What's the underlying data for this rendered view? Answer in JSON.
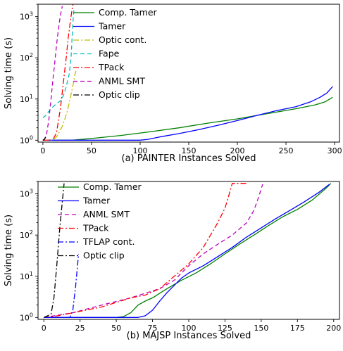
{
  "chart_data": [
    {
      "type": "line",
      "caption": "(a) PAINTER Instances Solved",
      "xlabel": "",
      "ylabel": "Solving time (s)",
      "xscale": "linear",
      "yscale": "log",
      "xlim": [
        -5,
        305
      ],
      "ylim": [
        0.9,
        2000
      ],
      "xticks": [
        0,
        50,
        100,
        150,
        200,
        250,
        300
      ],
      "yticks": [
        {
          "value": 1,
          "label": "10",
          "exp": "0"
        },
        {
          "value": 10,
          "label": "10",
          "exp": "1"
        },
        {
          "value": 100,
          "label": "10",
          "exp": "2"
        },
        {
          "value": 1000,
          "label": "10",
          "exp": "3"
        }
      ],
      "legend_position": "upper-left",
      "series": [
        {
          "name": "Comp. Tamer",
          "color": "#008000",
          "dash": "solid",
          "points": [
            [
              0,
              1
            ],
            [
              30,
              1
            ],
            [
              50,
              1.1
            ],
            [
              80,
              1.3
            ],
            [
              110,
              1.6
            ],
            [
              140,
              2
            ],
            [
              170,
              2.6
            ],
            [
              200,
              3.3
            ],
            [
              220,
              4
            ],
            [
              240,
              4.8
            ],
            [
              260,
              5.8
            ],
            [
              280,
              7.2
            ],
            [
              290,
              8.5
            ],
            [
              298,
              11
            ]
          ]
        },
        {
          "name": "Tamer",
          "color": "#0000ff",
          "dash": "solid",
          "points": [
            [
              0,
              1
            ],
            [
              100,
              1
            ],
            [
              108,
              1.05
            ],
            [
              120,
              1.2
            ],
            [
              140,
              1.45
            ],
            [
              160,
              1.8
            ],
            [
              180,
              2.3
            ],
            [
              200,
              3
            ],
            [
              220,
              4
            ],
            [
              240,
              5.2
            ],
            [
              260,
              6.5
            ],
            [
              275,
              8.5
            ],
            [
              285,
              11
            ],
            [
              292,
              14
            ],
            [
              298,
              20
            ]
          ]
        },
        {
          "name": "Optic cont.",
          "color": "#bfbf00",
          "dash": "dashdot",
          "points": [
            [
              0,
              1
            ],
            [
              10,
              1
            ],
            [
              14,
              1.2
            ],
            [
              17,
              1.6
            ],
            [
              20,
              2.2
            ],
            [
              23,
              3.5
            ],
            [
              25,
              5
            ],
            [
              27,
              8
            ],
            [
              29,
              13
            ],
            [
              31,
              22
            ],
            [
              33,
              40
            ],
            [
              34,
              48
            ]
          ]
        },
        {
          "name": "Fape",
          "color": "#00bfbf",
          "dash": "dashed",
          "points": [
            [
              0,
              3.5
            ],
            [
              3,
              4
            ],
            [
              6,
              5
            ],
            [
              9,
              6
            ],
            [
              12,
              7
            ],
            [
              15,
              8
            ],
            [
              18,
              9
            ],
            [
              21,
              12
            ],
            [
              24,
              20
            ],
            [
              27,
              40
            ],
            [
              29,
              100
            ],
            [
              30,
              300
            ],
            [
              31,
              800
            ],
            [
              32,
              1600
            ]
          ]
        },
        {
          "name": "TPack",
          "color": "#ff0000",
          "dash": "dashdot",
          "points": [
            [
              0,
              1
            ],
            [
              10,
              1
            ],
            [
              14,
              1.5
            ],
            [
              16,
              3
            ],
            [
              18,
              6
            ],
            [
              20,
              15
            ],
            [
              22,
              40
            ],
            [
              24,
              100
            ],
            [
              26,
              300
            ],
            [
              28,
              700
            ],
            [
              30,
              1500
            ],
            [
              31,
              2000
            ]
          ]
        },
        {
          "name": "ANML SMT",
          "color": "#bf00bf",
          "dash": "dashed",
          "points": [
            [
              0,
              1
            ],
            [
              2,
              1.1
            ],
            [
              4,
              1.5
            ],
            [
              6,
              3
            ],
            [
              8,
              8
            ],
            [
              10,
              25
            ],
            [
              12,
              70
            ],
            [
              14,
              200
            ],
            [
              16,
              500
            ],
            [
              18,
              1100
            ],
            [
              20,
              1800
            ]
          ]
        },
        {
          "name": "Optic clip",
          "color": "#000000",
          "dash": "dashdot",
          "points": [
            [
              0,
              1
            ],
            [
              1,
              1
            ],
            [
              2,
              1.1
            ],
            [
              3,
              1.2
            ]
          ]
        }
      ]
    },
    {
      "type": "line",
      "caption": "(b) MAJSP Instances Solved",
      "xlabel": "",
      "ylabel": "Solving time (s)",
      "xscale": "linear",
      "yscale": "log",
      "xlim": [
        -4,
        204
      ],
      "ylim": [
        0.9,
        2000
      ],
      "xticks": [
        0,
        25,
        50,
        75,
        100,
        125,
        150,
        175,
        200
      ],
      "yticks": [
        {
          "value": 1,
          "label": "10",
          "exp": "0"
        },
        {
          "value": 10,
          "label": "10",
          "exp": "1"
        },
        {
          "value": 100,
          "label": "10",
          "exp": "2"
        },
        {
          "value": 1000,
          "label": "10",
          "exp": "3"
        }
      ],
      "legend_position": "upper-left",
      "series": [
        {
          "name": "Comp. Tamer",
          "color": "#008000",
          "dash": "solid",
          "points": [
            [
              0,
              1
            ],
            [
              50,
              1
            ],
            [
              55,
              1.05
            ],
            [
              60,
              1.3
            ],
            [
              65,
              2
            ],
            [
              70,
              2.5
            ],
            [
              75,
              3
            ],
            [
              85,
              5
            ],
            [
              95,
              8
            ],
            [
              105,
              12
            ],
            [
              115,
              20
            ],
            [
              125,
              35
            ],
            [
              135,
              60
            ],
            [
              145,
              100
            ],
            [
              155,
              170
            ],
            [
              165,
              280
            ],
            [
              175,
              420
            ],
            [
              185,
              700
            ],
            [
              195,
              1400
            ],
            [
              198,
              1800
            ]
          ]
        },
        {
          "name": "Tamer",
          "color": "#0000ff",
          "dash": "solid",
          "points": [
            [
              0,
              1
            ],
            [
              65,
              1
            ],
            [
              70,
              1.1
            ],
            [
              75,
              1.5
            ],
            [
              80,
              2.5
            ],
            [
              85,
              4
            ],
            [
              90,
              6
            ],
            [
              95,
              9
            ],
            [
              100,
              12
            ],
            [
              110,
              18
            ],
            [
              120,
              30
            ],
            [
              130,
              50
            ],
            [
              140,
              90
            ],
            [
              150,
              150
            ],
            [
              160,
              250
            ],
            [
              170,
              400
            ],
            [
              180,
              650
            ],
            [
              190,
              1100
            ],
            [
              197,
              1700
            ]
          ]
        },
        {
          "name": "ANML SMT",
          "color": "#bf00bf",
          "dash": "dashed",
          "points": [
            [
              0,
              1
            ],
            [
              20,
              1.3
            ],
            [
              40,
              2
            ],
            [
              60,
              3
            ],
            [
              80,
              5
            ],
            [
              90,
              8
            ],
            [
              100,
              18
            ],
            [
              110,
              35
            ],
            [
              120,
              60
            ],
            [
              130,
              100
            ],
            [
              140,
              200
            ],
            [
              145,
              400
            ],
            [
              148,
              800
            ],
            [
              151,
              1700
            ]
          ]
        },
        {
          "name": "TPack",
          "color": "#ff0000",
          "dash": "dashdot",
          "points": [
            [
              0,
              1
            ],
            [
              10,
              1.1
            ],
            [
              20,
              1.3
            ],
            [
              40,
              1.8
            ],
            [
              60,
              3
            ],
            [
              70,
              3.5
            ],
            [
              80,
              5
            ],
            [
              90,
              10
            ],
            [
              100,
              20
            ],
            [
              110,
              50
            ],
            [
              115,
              100
            ],
            [
              120,
              200
            ],
            [
              125,
              450
            ],
            [
              128,
              1000
            ],
            [
              130,
              1800
            ],
            [
              140,
              1800
            ]
          ]
        },
        {
          "name": "TFLAP cont.",
          "color": "#0000ff",
          "dash": "dashdot",
          "points": [
            [
              0,
              1
            ],
            [
              18,
              1
            ],
            [
              20,
              1.5
            ],
            [
              21,
              3
            ],
            [
              22,
              6
            ],
            [
              23,
              15
            ],
            [
              24,
              35
            ]
          ]
        },
        {
          "name": "Optic clip",
          "color": "#000000",
          "dash": "dashdot",
          "points": [
            [
              0,
              1
            ],
            [
              5,
              1.2
            ],
            [
              7,
              3
            ],
            [
              9,
              20
            ],
            [
              11,
              150
            ],
            [
              13,
              800
            ],
            [
              14,
              1800
            ]
          ]
        }
      ]
    }
  ]
}
